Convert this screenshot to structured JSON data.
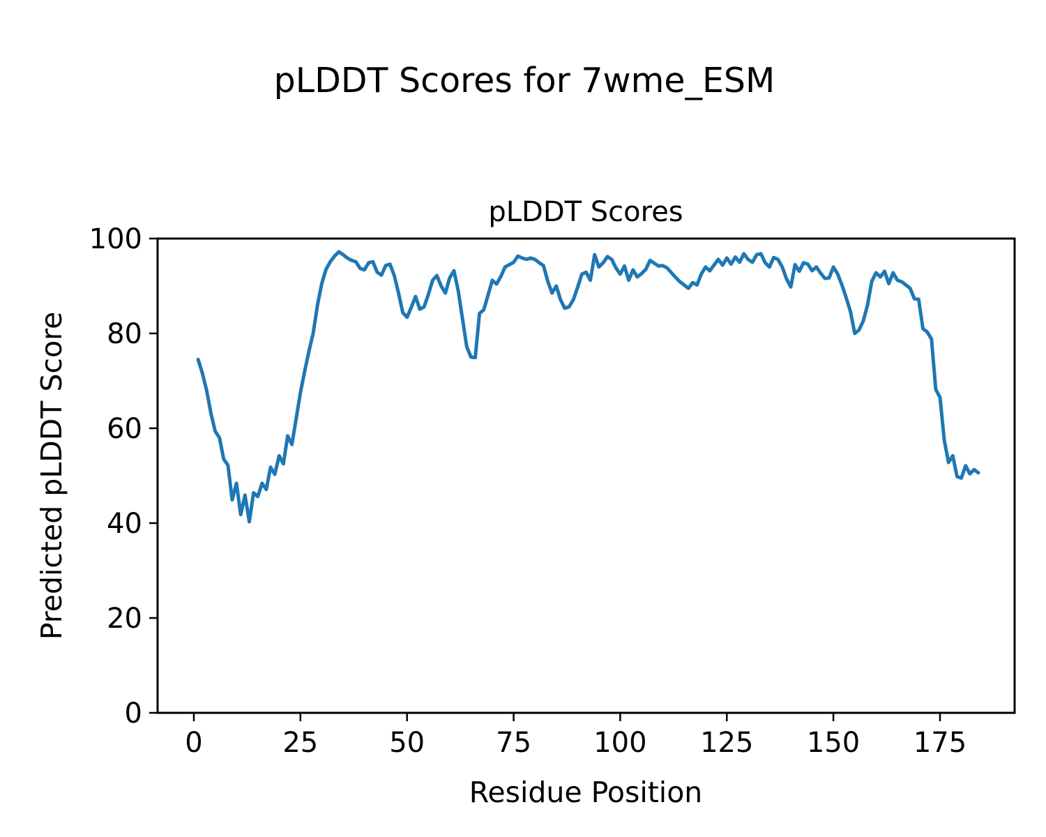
{
  "figure_title": "pLDDT Scores for 7wme_ESM",
  "chart_data": {
    "type": "line",
    "title": "pLDDT Scores",
    "xlabel": "Residue Position",
    "ylabel": "Predicted pLDDT Score",
    "x_ticks": [
      0,
      25,
      50,
      75,
      100,
      125,
      150,
      175
    ],
    "y_ticks": [
      0,
      20,
      40,
      60,
      80,
      100
    ],
    "xlim": [
      -8.5,
      192.5
    ],
    "ylim": [
      0,
      100
    ],
    "grid": false,
    "legend_position": "none",
    "line_color": "#1f77b4",
    "series": [
      {
        "name": "pLDDT",
        "x_start": 1,
        "x_step": 1,
        "n_points": 184,
        "values": [
          74.5,
          71.6,
          68.0,
          63.2,
          59.4,
          58.0,
          53.5,
          52.2,
          44.9,
          48.4,
          41.8,
          45.9,
          40.3,
          46.4,
          45.6,
          48.4,
          47.1,
          51.8,
          50.3,
          54.2,
          52.5,
          58.4,
          56.6,
          62.0,
          67.5,
          72.0,
          76.3,
          80.1,
          86.0,
          90.5,
          93.5,
          95.1,
          96.3,
          97.2,
          96.6,
          95.9,
          95.4,
          95.1,
          93.7,
          93.4,
          94.9,
          95.1,
          92.9,
          92.3,
          94.3,
          94.6,
          92.2,
          88.5,
          84.4,
          83.4,
          85.5,
          87.8,
          85.1,
          85.6,
          88.2,
          91.2,
          92.2,
          90.0,
          88.5,
          91.7,
          93.2,
          89.0,
          83.1,
          77.2,
          75.0,
          74.9,
          84.2,
          85.0,
          88.1,
          91.2,
          90.4,
          92.0,
          94.0,
          94.5,
          95.0,
          96.3,
          95.9,
          95.6,
          95.9,
          95.6,
          94.9,
          94.3,
          91.0,
          88.5,
          90.0,
          87.1,
          85.3,
          85.6,
          87.1,
          89.7,
          92.5,
          92.9,
          91.2,
          96.6,
          94.0,
          94.9,
          96.2,
          95.6,
          93.8,
          92.5,
          94.2,
          91.2,
          93.4,
          91.9,
          92.6,
          93.5,
          95.4,
          94.8,
          94.2,
          94.3,
          93.8,
          92.8,
          91.8,
          90.9,
          90.2,
          89.5,
          90.7,
          90.2,
          92.5,
          94.0,
          93.2,
          94.4,
          95.6,
          94.4,
          95.9,
          94.6,
          96.1,
          95.0,
          96.8,
          95.6,
          95.0,
          96.6,
          96.8,
          94.9,
          94.0,
          96.0,
          95.6,
          94.0,
          91.5,
          89.8,
          94.5,
          93.1,
          94.9,
          94.6,
          93.2,
          94.0,
          92.7,
          91.6,
          91.7,
          94.0,
          92.5,
          90.2,
          87.5,
          84.6,
          80.0,
          80.7,
          82.6,
          86.0,
          91.0,
          92.8,
          91.9,
          93.1,
          90.5,
          92.8,
          91.2,
          90.9,
          90.2,
          89.5,
          87.3,
          87.2,
          81.0,
          80.3,
          78.8,
          68.2,
          66.5,
          57.5,
          52.8,
          54.2,
          49.8,
          49.5,
          52.1,
          50.4,
          51.3,
          50.6
        ]
      }
    ]
  }
}
